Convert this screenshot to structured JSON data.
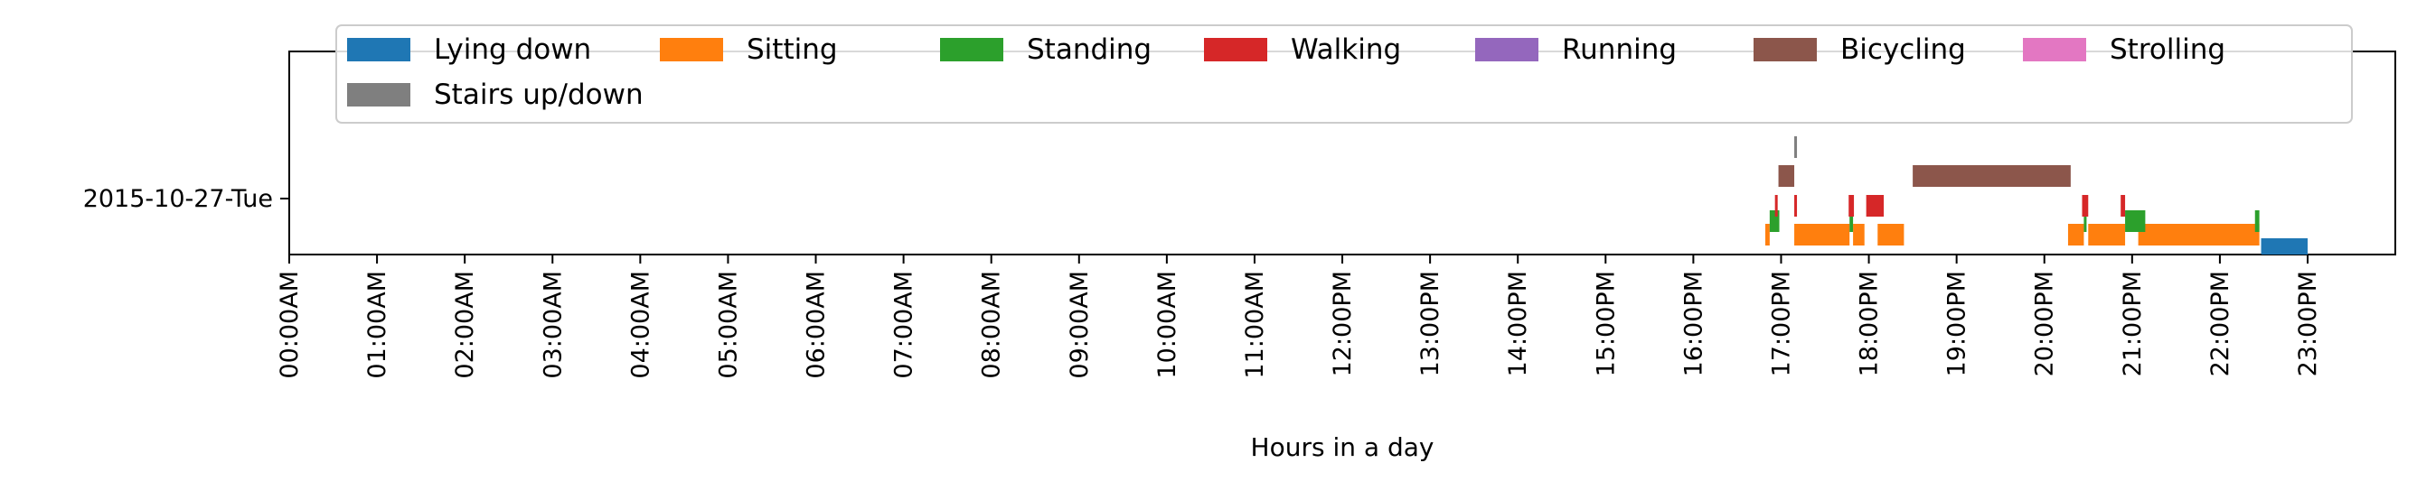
{
  "chart_data": {
    "type": "timeline",
    "xlabel": "Hours in a day",
    "row_label": "2015-10-27-Tue",
    "xlim": [
      0,
      24
    ],
    "tick_labels": [
      "00:00AM",
      "01:00AM",
      "02:00AM",
      "03:00AM",
      "04:00AM",
      "05:00AM",
      "06:00AM",
      "07:00AM",
      "08:00AM",
      "09:00AM",
      "10:00AM",
      "11:00AM",
      "12:00PM",
      "13:00PM",
      "14:00PM",
      "15:00PM",
      "16:00PM",
      "17:00PM",
      "18:00PM",
      "19:00PM",
      "20:00PM",
      "21:00PM",
      "22:00PM",
      "23:00PM"
    ],
    "grid": false,
    "legend_placement": "top",
    "series": [
      {
        "name": "Lying down",
        "color": "#1f77b4",
        "intervals": [
          [
            22.47,
            23.0
          ]
        ]
      },
      {
        "name": "Sitting",
        "color": "#ff7f0e",
        "intervals": [
          [
            16.82,
            16.87
          ],
          [
            17.15,
            17.78
          ],
          [
            17.82,
            17.95
          ],
          [
            18.1,
            18.4
          ],
          [
            20.27,
            20.45
          ],
          [
            20.5,
            20.92
          ],
          [
            21.07,
            22.45
          ]
        ]
      },
      {
        "name": "Standing",
        "color": "#2ca02c",
        "intervals": [
          [
            16.87,
            16.98
          ],
          [
            17.78,
            17.82
          ],
          [
            20.45,
            20.48
          ],
          [
            20.92,
            21.15
          ],
          [
            22.4,
            22.45
          ]
        ]
      },
      {
        "name": "Walking",
        "color": "#d62728",
        "intervals": [
          [
            16.93,
            16.96
          ],
          [
            17.15,
            17.18
          ],
          [
            17.77,
            17.83
          ],
          [
            17.97,
            18.17
          ],
          [
            20.43,
            20.5
          ],
          [
            20.87,
            20.92
          ]
        ]
      },
      {
        "name": "Running",
        "color": "#9467bd",
        "intervals": []
      },
      {
        "name": "Bicycling",
        "color": "#8c564b",
        "intervals": [
          [
            16.97,
            17.15
          ],
          [
            18.5,
            20.3
          ]
        ]
      },
      {
        "name": "Strolling",
        "color": "#e377c2",
        "intervals": []
      },
      {
        "name": "Stairs up/down",
        "color": "#7f7f7f",
        "intervals": [
          [
            17.15,
            17.18
          ]
        ]
      }
    ]
  }
}
